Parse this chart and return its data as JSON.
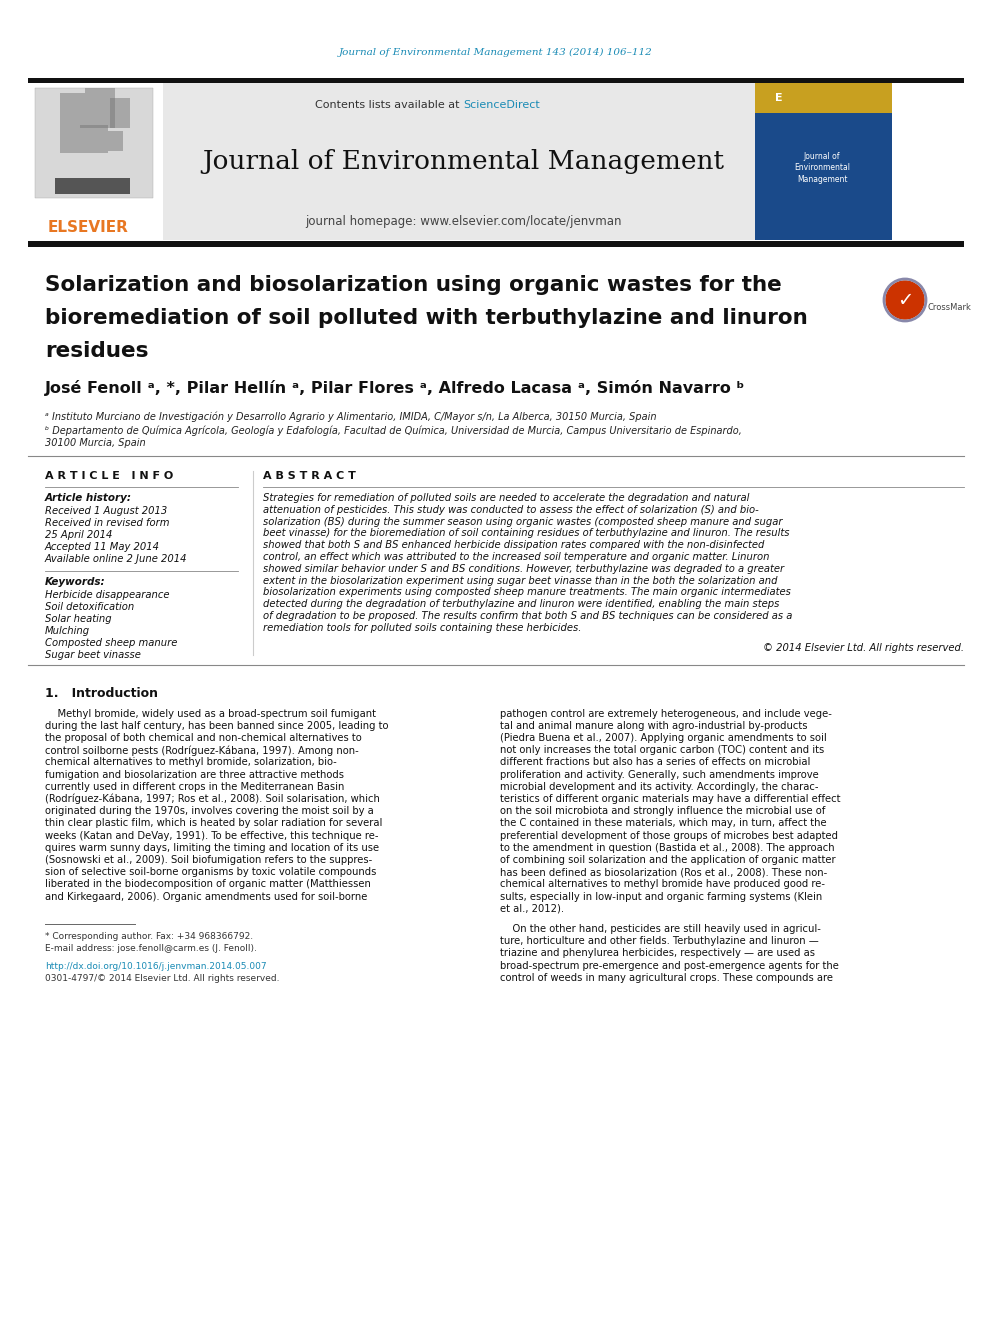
{
  "journal_ref": "Journal of Environmental Management 143 (2014) 106–112",
  "journal_ref_color": "#1a8bb5",
  "journal_name": "Journal of Environmental Management",
  "contents_text": "Contents lists available at ",
  "sciencedirect_text": "ScienceDirect",
  "sciencedirect_color": "#1a8bb5",
  "homepage_text": "journal homepage: www.elsevier.com/locate/jenvman",
  "elsevier_color": "#e87722",
  "elsevier_text": "ELSEVIER",
  "article_title_line1": "Solarization and biosolarization using organic wastes for the",
  "article_title_line2": "bioremediation of soil polluted with terbuthylazine and linuron",
  "article_title_line3": "residues",
  "affil_a": "ᵃ Instituto Murciano de Investigación y Desarrollo Agrario y Alimentario, IMIDA, C/Mayor s/n, La Alberca, 30150 Murcia, Spain",
  "affil_b": "ᵇ Departamento de Química Agrícola, Geología y Edafología, Facultad de Química, Universidad de Murcia, Campus Universitario de Espinardo,",
  "affil_b2": "30100 Murcia, Spain",
  "article_info_header": "ARTICLE INFO",
  "article_history_header": "Article history:",
  "received_text": "Received 1 August 2013",
  "received_revised": "Received in revised form",
  "revised_date": "25 April 2014",
  "accepted_text": "Accepted 11 May 2014",
  "available_text": "Available online 2 June 2014",
  "keywords_header": "Keywords:",
  "kw1": "Herbicide disappearance",
  "kw2": "Soil detoxification",
  "kw3": "Solar heating",
  "kw4": "Mulching",
  "kw5": "Composted sheep manure",
  "kw6": "Sugar beet vinasse",
  "abstract_header": "ABSTRACT",
  "abstract_lines": [
    "Strategies for remediation of polluted soils are needed to accelerate the degradation and natural",
    "attenuation of pesticides. This study was conducted to assess the effect of solarization (S) and bio-",
    "solarization (BS) during the summer season using organic wastes (composted sheep manure and sugar",
    "beet vinasse) for the bioremediation of soil containing residues of terbuthylazine and linuron. The results",
    "showed that both S and BS enhanced herbicide dissipation rates compared with the non-disinfected",
    "control, an effect which was attributed to the increased soil temperature and organic matter. Linuron",
    "showed similar behavior under S and BS conditions. However, terbuthylazine was degraded to a greater",
    "extent in the biosolarization experiment using sugar beet vinasse than in the both the solarization and",
    "biosolarization experiments using composted sheep manure treatments. The main organic intermediates",
    "detected during the degradation of terbuthylazine and linuron were identified, enabling the main steps",
    "of degradation to be proposed. The results confirm that both S and BS techniques can be considered as a",
    "remediation tools for polluted soils containing these herbicides."
  ],
  "copyright_text": "© 2014 Elsevier Ltd. All rights reserved.",
  "intro_header": "1.   Introduction",
  "intro_col1_lines": [
    "    Methyl bromide, widely used as a broad-spectrum soil fumigant",
    "during the last half century, has been banned since 2005, leading to",
    "the proposal of both chemical and non-chemical alternatives to",
    "control soilborne pests (Rodríguez-Kábana, 1997). Among non-",
    "chemical alternatives to methyl bromide, solarization, bio-",
    "fumigation and biosolarization are three attractive methods",
    "currently used in different crops in the Mediterranean Basin",
    "(Rodríguez-Kábana, 1997; Ros et al., 2008). Soil solarisation, which",
    "originated during the 1970s, involves covering the moist soil by a",
    "thin clear plastic film, which is heated by solar radiation for several",
    "weeks (Katan and DeVay, 1991). To be effective, this technique re-",
    "quires warm sunny days, limiting the timing and location of its use",
    "(Sosnowski et al., 2009). Soil biofumigation refers to the suppres-",
    "sion of selective soil-borne organisms by toxic volatile compounds",
    "liberated in the biodecomposition of organic matter (Matthiessen",
    "and Kirkegaard, 2006). Organic amendments used for soil-borne"
  ],
  "intro_col2_lines": [
    "pathogen control are extremely heterogeneous, and include vege-",
    "tal and animal manure along with agro-industrial by-products",
    "(Piedra Buena et al., 2007). Applying organic amendments to soil",
    "not only increases the total organic carbon (TOC) content and its",
    "different fractions but also has a series of effects on microbial",
    "proliferation and activity. Generally, such amendments improve",
    "microbial development and its activity. Accordingly, the charac-",
    "teristics of different organic materials may have a differential effect",
    "on the soil microbiota and strongly influence the microbial use of",
    "the C contained in these materials, which may, in turn, affect the",
    "preferential development of those groups of microbes best adapted",
    "to the amendment in question (Bastida et al., 2008). The approach",
    "of combining soil solarization and the application of organic matter",
    "has been defined as biosolarization (Ros et al., 2008). These non-",
    "chemical alternatives to methyl bromide have produced good re-",
    "sults, especially in low-input and organic farming systems (Klein",
    "et al., 2012)."
  ],
  "intro_col2_para2_lines": [
    "    On the other hand, pesticides are still heavily used in agricul-",
    "ture, horticulture and other fields. Terbuthylazine and linuron —",
    "triazine and phenylurea herbicides, respectively — are used as",
    "broad-spectrum pre-emergence and post-emergence agents for the",
    "control of weeds in many agricultural crops. These compounds are"
  ],
  "footnote_star": "* Corresponding author. Fax: +34 968366792.",
  "footnote_email": "E-mail address: jose.fenoll@carm.es (J. Fenoll).",
  "doi_text": "http://dx.doi.org/10.1016/j.jenvman.2014.05.007",
  "issn_text": "0301-4797/© 2014 Elsevier Ltd. All rights reserved.",
  "bg_color": "#ffffff",
  "link_color": "#1a8bb5"
}
